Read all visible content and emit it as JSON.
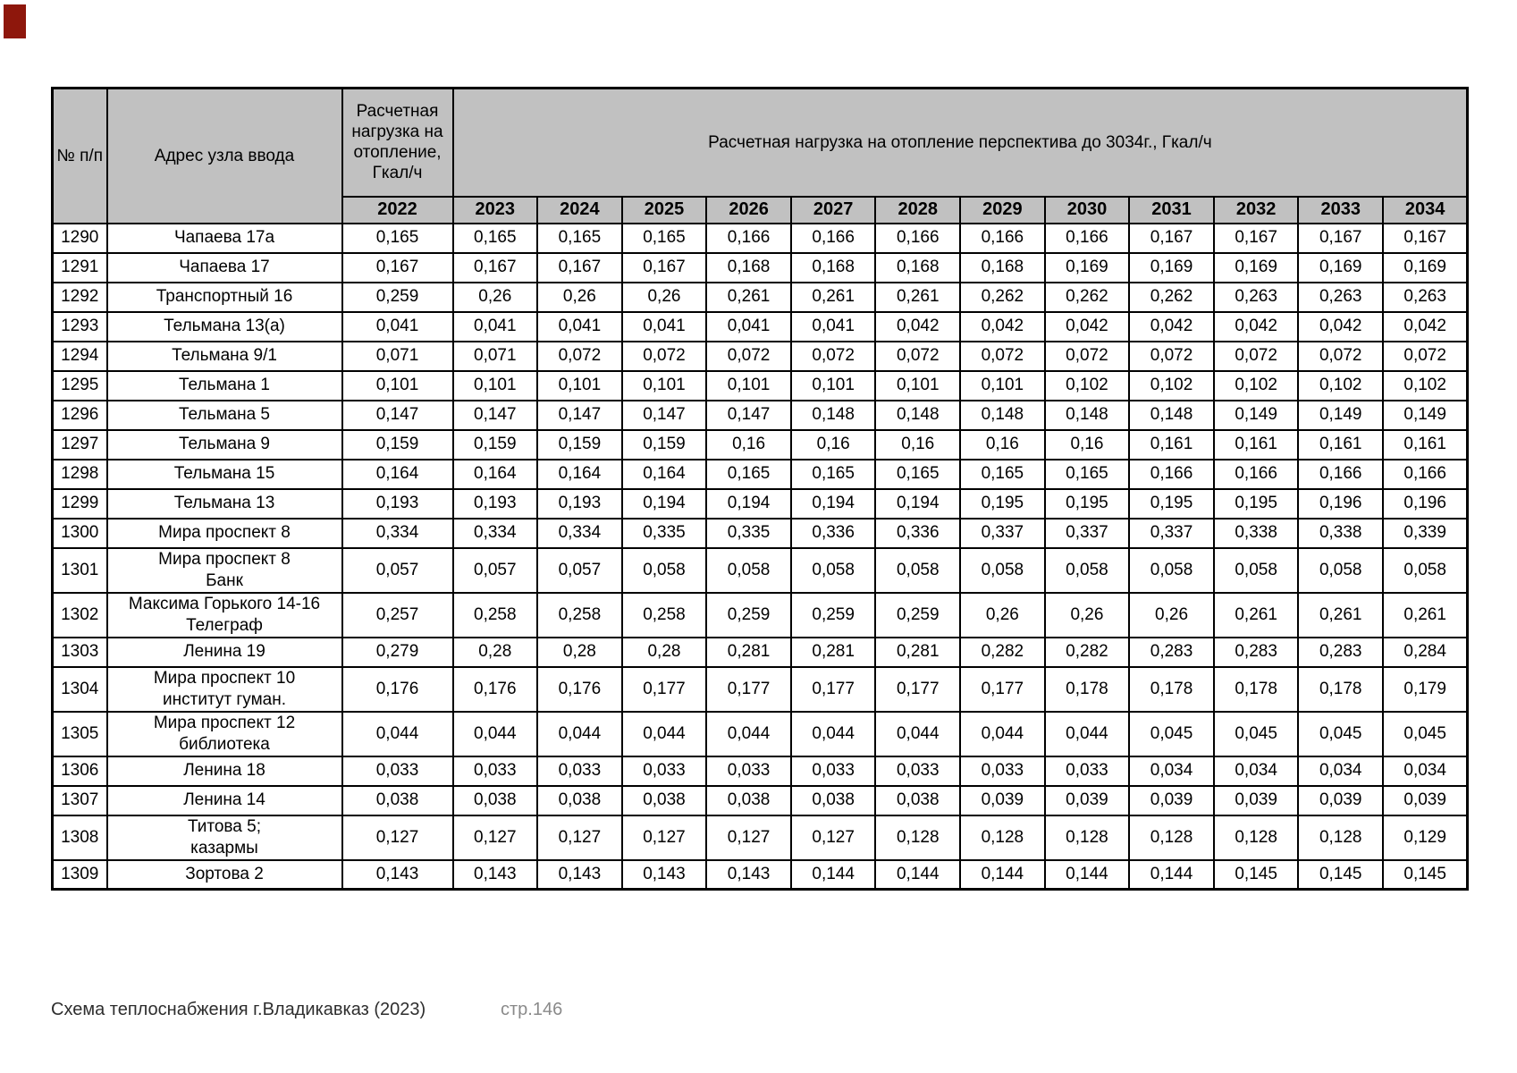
{
  "document": {
    "corner_marker_color": "#8e170c",
    "footer": {
      "left_text": "Схема теплоснабжения г.Владикавказ (2023)",
      "page_label": "стр.146"
    }
  },
  "table": {
    "header": {
      "num": "№ п/п",
      "address": "Адрес узла ввода",
      "load2022": "Расчетная нагрузка на отопление, Гкал/ч",
      "perspective": "Расчетная нагрузка на отопление перспектива до 3034г., Гкал/ч",
      "years": [
        "2022",
        "2023",
        "2024",
        "2025",
        "2026",
        "2027",
        "2028",
        "2029",
        "2030",
        "2031",
        "2032",
        "2033",
        "2034"
      ]
    },
    "header_bg": "#c1c1c1",
    "rows": [
      {
        "num": "1290",
        "address": [
          "Чапаева 17а"
        ],
        "values": [
          "0,165",
          "0,165",
          "0,165",
          "0,165",
          "0,166",
          "0,166",
          "0,166",
          "0,166",
          "0,166",
          "0,167",
          "0,167",
          "0,167",
          "0,167"
        ]
      },
      {
        "num": "1291",
        "address": [
          "Чапаева 17"
        ],
        "values": [
          "0,167",
          "0,167",
          "0,167",
          "0,167",
          "0,168",
          "0,168",
          "0,168",
          "0,168",
          "0,169",
          "0,169",
          "0,169",
          "0,169",
          "0,169"
        ]
      },
      {
        "num": "1292",
        "address": [
          "Транспортный 16"
        ],
        "values": [
          "0,259",
          "0,26",
          "0,26",
          "0,26",
          "0,261",
          "0,261",
          "0,261",
          "0,262",
          "0,262",
          "0,262",
          "0,263",
          "0,263",
          "0,263"
        ]
      },
      {
        "num": "1293",
        "address": [
          "Тельмана 13(а)"
        ],
        "values": [
          "0,041",
          "0,041",
          "0,041",
          "0,041",
          "0,041",
          "0,041",
          "0,042",
          "0,042",
          "0,042",
          "0,042",
          "0,042",
          "0,042",
          "0,042"
        ]
      },
      {
        "num": "1294",
        "address": [
          "Тельмана 9/1"
        ],
        "values": [
          "0,071",
          "0,071",
          "0,072",
          "0,072",
          "0,072",
          "0,072",
          "0,072",
          "0,072",
          "0,072",
          "0,072",
          "0,072",
          "0,072",
          "0,072"
        ]
      },
      {
        "num": "1295",
        "address": [
          "Тельмана 1"
        ],
        "values": [
          "0,101",
          "0,101",
          "0,101",
          "0,101",
          "0,101",
          "0,101",
          "0,101",
          "0,101",
          "0,102",
          "0,102",
          "0,102",
          "0,102",
          "0,102"
        ]
      },
      {
        "num": "1296",
        "address": [
          "Тельмана 5"
        ],
        "values": [
          "0,147",
          "0,147",
          "0,147",
          "0,147",
          "0,147",
          "0,148",
          "0,148",
          "0,148",
          "0,148",
          "0,148",
          "0,149",
          "0,149",
          "0,149"
        ]
      },
      {
        "num": "1297",
        "address": [
          "Тельмана 9"
        ],
        "values": [
          "0,159",
          "0,159",
          "0,159",
          "0,159",
          "0,16",
          "0,16",
          "0,16",
          "0,16",
          "0,16",
          "0,161",
          "0,161",
          "0,161",
          "0,161"
        ]
      },
      {
        "num": "1298",
        "address": [
          "Тельмана 15"
        ],
        "values": [
          "0,164",
          "0,164",
          "0,164",
          "0,164",
          "0,165",
          "0,165",
          "0,165",
          "0,165",
          "0,165",
          "0,166",
          "0,166",
          "0,166",
          "0,166"
        ]
      },
      {
        "num": "1299",
        "address": [
          "Тельмана 13"
        ],
        "values": [
          "0,193",
          "0,193",
          "0,193",
          "0,194",
          "0,194",
          "0,194",
          "0,194",
          "0,195",
          "0,195",
          "0,195",
          "0,195",
          "0,196",
          "0,196"
        ]
      },
      {
        "num": "1300",
        "address": [
          "Мира проспект 8"
        ],
        "values": [
          "0,334",
          "0,334",
          "0,334",
          "0,335",
          "0,335",
          "0,336",
          "0,336",
          "0,337",
          "0,337",
          "0,337",
          "0,338",
          "0,338",
          "0,339"
        ]
      },
      {
        "num": "1301",
        "address": [
          "Мира проспект 8",
          "Банк"
        ],
        "values": [
          "0,057",
          "0,057",
          "0,057",
          "0,058",
          "0,058",
          "0,058",
          "0,058",
          "0,058",
          "0,058",
          "0,058",
          "0,058",
          "0,058",
          "0,058"
        ]
      },
      {
        "num": "1302",
        "address": [
          "Максима Горького 14-16",
          "Телеграф"
        ],
        "values": [
          "0,257",
          "0,258",
          "0,258",
          "0,258",
          "0,259",
          "0,259",
          "0,259",
          "0,26",
          "0,26",
          "0,26",
          "0,261",
          "0,261",
          "0,261"
        ]
      },
      {
        "num": "1303",
        "address": [
          "Ленина 19"
        ],
        "values": [
          "0,279",
          "0,28",
          "0,28",
          "0,28",
          "0,281",
          "0,281",
          "0,281",
          "0,282",
          "0,282",
          "0,283",
          "0,283",
          "0,283",
          "0,284"
        ]
      },
      {
        "num": "1304",
        "address": [
          "Мира проспект 10",
          "институт гуман."
        ],
        "values": [
          "0,176",
          "0,176",
          "0,176",
          "0,177",
          "0,177",
          "0,177",
          "0,177",
          "0,177",
          "0,178",
          "0,178",
          "0,178",
          "0,178",
          "0,179"
        ]
      },
      {
        "num": "1305",
        "address": [
          "Мира проспект 12",
          "библиотека"
        ],
        "values": [
          "0,044",
          "0,044",
          "0,044",
          "0,044",
          "0,044",
          "0,044",
          "0,044",
          "0,044",
          "0,044",
          "0,045",
          "0,045",
          "0,045",
          "0,045"
        ]
      },
      {
        "num": "1306",
        "address": [
          "Ленина 18"
        ],
        "values": [
          "0,033",
          "0,033",
          "0,033",
          "0,033",
          "0,033",
          "0,033",
          "0,033",
          "0,033",
          "0,033",
          "0,034",
          "0,034",
          "0,034",
          "0,034"
        ]
      },
      {
        "num": "1307",
        "address": [
          "Ленина 14"
        ],
        "values": [
          "0,038",
          "0,038",
          "0,038",
          "0,038",
          "0,038",
          "0,038",
          "0,038",
          "0,039",
          "0,039",
          "0,039",
          "0,039",
          "0,039",
          "0,039"
        ]
      },
      {
        "num": "1308",
        "address": [
          "Титова 5;",
          "казармы"
        ],
        "values": [
          "0,127",
          "0,127",
          "0,127",
          "0,127",
          "0,127",
          "0,127",
          "0,128",
          "0,128",
          "0,128",
          "0,128",
          "0,128",
          "0,128",
          "0,129"
        ]
      },
      {
        "num": "1309",
        "address": [
          "Зортова 2"
        ],
        "values": [
          "0,143",
          "0,143",
          "0,143",
          "0,143",
          "0,143",
          "0,144",
          "0,144",
          "0,144",
          "0,144",
          "0,144",
          "0,145",
          "0,145",
          "0,145"
        ]
      }
    ]
  }
}
